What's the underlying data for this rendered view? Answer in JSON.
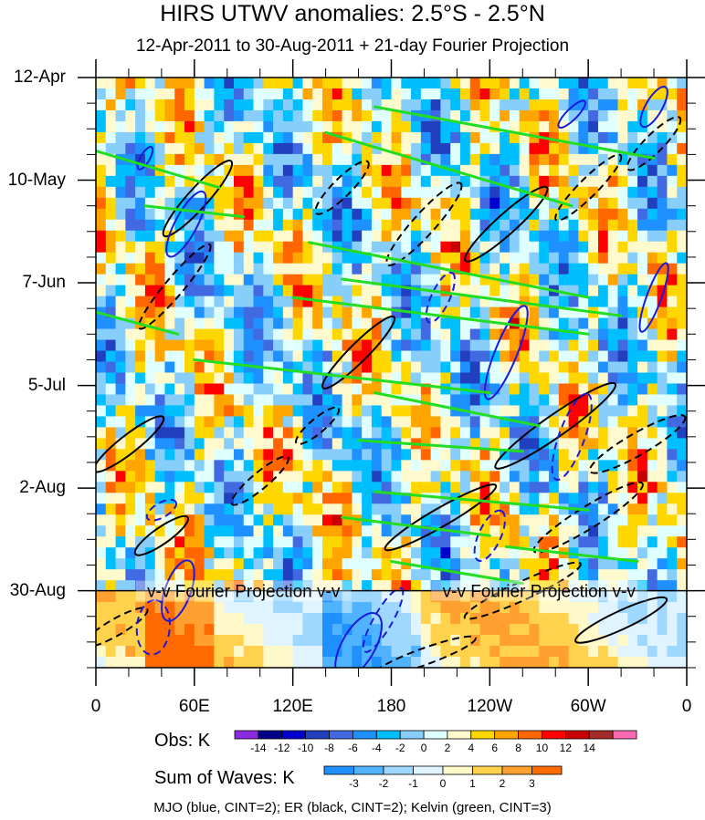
{
  "title": "HIRS UTWV anomalies: 2.5°S - 2.5°N",
  "subtitle": "12-Apr-2011 to 30-Aug-2011 + 21-day Fourier Projection",
  "chart_data": {
    "type": "heatmap",
    "description_kind": "Hovmoller (longitude-time) plot",
    "xlabel": "",
    "ylabel": "",
    "x_tick_labels": [
      "0",
      "60E",
      "120E",
      "180",
      "120W",
      "60W",
      "0"
    ],
    "x_tick_values_deg": [
      0,
      60,
      120,
      180,
      240,
      300,
      360
    ],
    "y_tick_labels": [
      "12-Apr",
      "10-May",
      "7-Jun",
      "5-Jul",
      "2-Aug",
      "30-Aug"
    ],
    "y_tick_days_from_start": [
      0,
      28,
      56,
      84,
      112,
      140
    ],
    "y_range_days": [
      0,
      161
    ],
    "projection_start_day": 140,
    "projection_label": "v-v Fourier Projection v-v",
    "obs_colorbar": {
      "label": "Obs: K",
      "levels": [
        -14,
        -12,
        -10,
        -8,
        -6,
        -4,
        -2,
        0,
        2,
        4,
        6,
        8,
        10,
        12,
        14
      ],
      "colors": [
        "#8a2be2",
        "#00008b",
        "#0000cd",
        "#2040c0",
        "#4169e1",
        "#1e90ff",
        "#00bfff",
        "#87cefa",
        "#e0ffff",
        "#fffacd",
        "#ffd700",
        "#ffa500",
        "#ff6600",
        "#ff0000",
        "#c80000",
        "#a52a2a",
        "#ff69b4"
      ]
    },
    "waves_colorbar": {
      "label": "Sum of Waves: K",
      "levels": [
        -3,
        -2,
        -1,
        0,
        1,
        2,
        3
      ],
      "colors": [
        "#1e90ff",
        "#4fb3ff",
        "#9fd8ff",
        "#e0f4ff",
        "#fff8c8",
        "#ffd24d",
        "#ffa030",
        "#ff6a00"
      ]
    },
    "contour_legend": "MJO (blue, CINT=2); ER (black, CINT=2); Kelvin (green, CINT=3)"
  }
}
